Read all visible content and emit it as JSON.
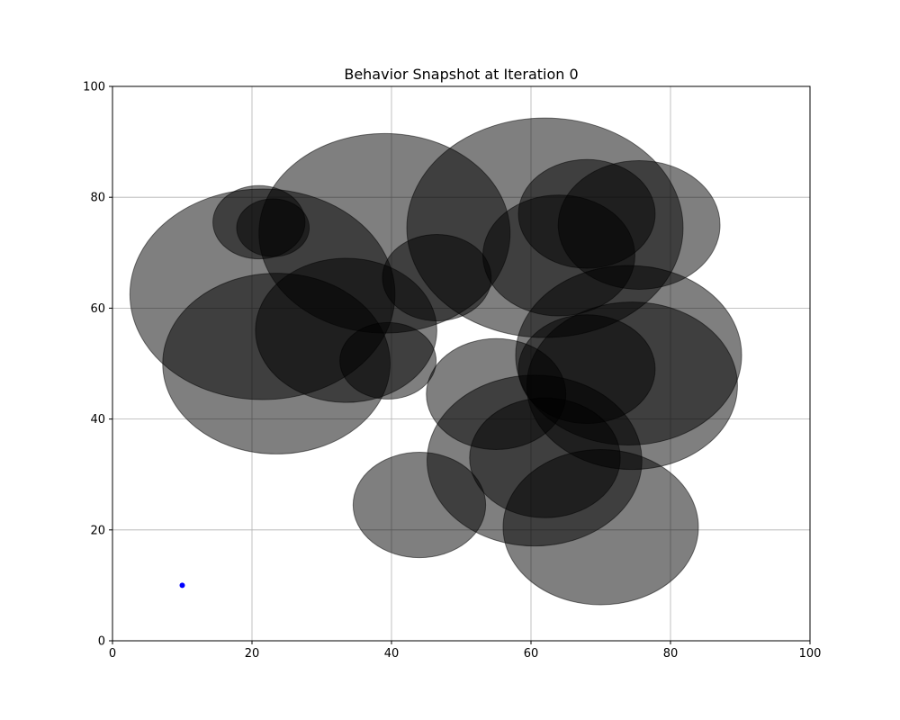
{
  "chart_data": {
    "type": "scatter",
    "title": "Behavior Snapshot at Iteration 0",
    "xlabel": "",
    "ylabel": "",
    "xlim": [
      0,
      100
    ],
    "ylim": [
      0,
      100
    ],
    "x_ticks": [
      "0",
      "20",
      "40",
      "60",
      "80",
      "100"
    ],
    "y_ticks": [
      "0",
      "20",
      "40",
      "60",
      "80",
      "100"
    ],
    "grid": true,
    "obstacles": [
      {
        "cx": 39.0,
        "cy": 73.5,
        "r": 18.0
      },
      {
        "cx": 62.0,
        "cy": 74.5,
        "r": 19.8
      },
      {
        "cx": 21.5,
        "cy": 62.5,
        "r": 19.0
      },
      {
        "cx": 23.5,
        "cy": 50.0,
        "r": 16.3
      },
      {
        "cx": 33.5,
        "cy": 56.0,
        "r": 13.0
      },
      {
        "cx": 21.0,
        "cy": 75.5,
        "r": 6.6
      },
      {
        "cx": 23.0,
        "cy": 74.5,
        "r": 5.2
      },
      {
        "cx": 46.5,
        "cy": 65.5,
        "r": 7.8
      },
      {
        "cx": 39.5,
        "cy": 50.5,
        "r": 6.9
      },
      {
        "cx": 64.0,
        "cy": 69.5,
        "r": 10.9
      },
      {
        "cx": 68.0,
        "cy": 77.0,
        "r": 9.8
      },
      {
        "cx": 75.5,
        "cy": 75.0,
        "r": 11.6
      },
      {
        "cx": 74.0,
        "cy": 51.5,
        "r": 16.2
      },
      {
        "cx": 74.5,
        "cy": 46.0,
        "r": 15.1
      },
      {
        "cx": 68.0,
        "cy": 49.0,
        "r": 9.8
      },
      {
        "cx": 55.0,
        "cy": 44.5,
        "r": 10.0
      },
      {
        "cx": 60.5,
        "cy": 32.5,
        "r": 15.4
      },
      {
        "cx": 62.0,
        "cy": 33.0,
        "r": 10.8
      },
      {
        "cx": 44.0,
        "cy": 24.5,
        "r": 9.5
      },
      {
        "cx": 70.0,
        "cy": 20.5,
        "r": 14.0
      }
    ],
    "agent": {
      "x": 10,
      "y": 10,
      "color": "#0000ff"
    },
    "obstacle_fill": "#000000",
    "obstacle_alpha": 0.5
  }
}
